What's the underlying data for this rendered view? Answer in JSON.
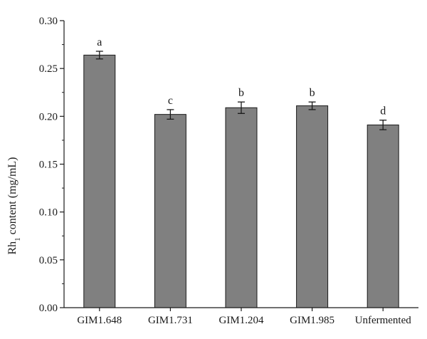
{
  "chart_data": {
    "type": "bar",
    "title": "",
    "xlabel": "",
    "ylabel": {
      "main": "Rh",
      "subscript": "1",
      "rest": " content (mg/mL)"
    },
    "categories": [
      "GIM1.648",
      "GIM1.731",
      "GIM1.204",
      "GIM1.985",
      "Unfermented"
    ],
    "values": [
      0.264,
      0.202,
      0.209,
      0.211,
      0.191
    ],
    "errors": [
      0.004,
      0.005,
      0.006,
      0.004,
      0.005
    ],
    "significance_labels": [
      "a",
      "c",
      "b",
      "b",
      "d"
    ],
    "ylim": [
      0,
      0.3
    ],
    "yticks": [
      "0.00",
      "0.05",
      "0.10",
      "0.15",
      "0.20",
      "0.25",
      "0.30"
    ],
    "grid": false,
    "legend": "none",
    "colors": {
      "bar": "#808080",
      "bar_edge": "#1a1a1a",
      "axis": "#1a1a1a"
    }
  }
}
